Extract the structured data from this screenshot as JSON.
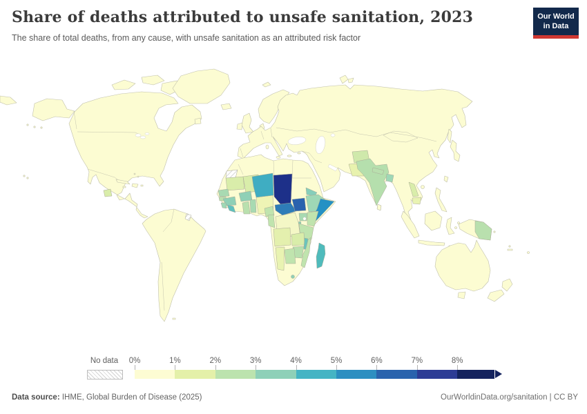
{
  "header": {
    "title": "Share of deaths attributed to unsafe sanitation, 2023",
    "subtitle": "The share of total deaths, from any cause, with unsafe sanitation as an attributed risk factor",
    "logo_line1": "Our World",
    "logo_line2": "in Data",
    "logo_bg": "#12294b",
    "logo_accent": "#cf3832"
  },
  "legend": {
    "no_data_label": "No data",
    "tick_labels": [
      "0%",
      "1%",
      "2%",
      "3%",
      "4%",
      "5%",
      "6%",
      "7%",
      "8%"
    ]
  },
  "footer": {
    "source_label": "Data source:",
    "source_text": " IHME, Global Burden of Disease (2025)",
    "right_text": "OurWorldinData.org/sanitation | CC BY"
  },
  "chart_data": {
    "type": "choropleth",
    "title": "Share of deaths attributed to unsafe sanitation, 2023",
    "unit": "% of total deaths",
    "legend_position": "bottom",
    "scale": {
      "tick_labels": [
        "0%",
        "1%",
        "2%",
        "3%",
        "4%",
        "5%",
        "6%",
        "7%",
        "8%"
      ],
      "colors": [
        "#fdfcd3",
        "#e4f0a9",
        "#bce3ae",
        "#8ed0b8",
        "#45b4c4",
        "#2d8fc1",
        "#2a63ad",
        "#2d3c95",
        "#14235e"
      ],
      "open_ended_max": true
    },
    "base_color": "#fcfcd2",
    "ocean_color": "#ffffff",
    "default_bucket": "0–1%",
    "no_data_countries": [
      "Western Sahara",
      "French Guiana"
    ],
    "countries": [
      {
        "id": "chad",
        "name": "Chad",
        "bucket": "7–8%",
        "color": "#1d3089"
      },
      {
        "id": "south-sudan",
        "name": "South Sudan",
        "bucket": "6–7%",
        "color": "#2a62ae"
      },
      {
        "id": "car",
        "name": "Central African Republic",
        "bucket": "5–6%",
        "color": "#2e7cb8"
      },
      {
        "id": "somalia",
        "name": "Somalia",
        "bucket": "5–6%",
        "color": "#2591c4"
      },
      {
        "id": "niger",
        "name": "Niger",
        "bucket": "4–5%",
        "color": "#3fadc2"
      },
      {
        "id": "madagascar",
        "name": "Madagascar",
        "bucket": "3–4%",
        "color": "#4fbbbc"
      },
      {
        "id": "liberia",
        "name": "Liberia",
        "bucket": "3–4%",
        "color": "#5fc0be"
      },
      {
        "id": "malawi",
        "name": "Malawi",
        "bucket": "3–4%",
        "color": "#6ac4bc"
      },
      {
        "id": "eritrea",
        "name": "Eritrea",
        "bucket": "2–3%",
        "color": "#86ceba"
      },
      {
        "id": "burkina-faso",
        "name": "Burkina Faso",
        "bucket": "2–3%",
        "color": "#8fd0b6"
      },
      {
        "id": "guinea",
        "name": "Guinea",
        "bucket": "2–3%",
        "color": "#8fd0b6"
      },
      {
        "id": "lesotho",
        "name": "Lesotho",
        "bucket": "2–3%",
        "color": "#8fd0b6"
      },
      {
        "id": "rwanda-burundi",
        "name": "Rwanda and Burundi",
        "bucket": "2–3%",
        "color": "#8fd0b6"
      },
      {
        "id": "ethiopia",
        "name": "Ethiopia",
        "bucket": "2–3%",
        "color": "#9ed8b6"
      },
      {
        "id": "sierra-leone",
        "name": "Sierra Leone",
        "bucket": "2–3%",
        "color": "#9ed8b6"
      },
      {
        "id": "bangladesh",
        "name": "Bangladesh",
        "bucket": "2–3%",
        "color": "#9ed8b6"
      },
      {
        "id": "senegal",
        "name": "Senegal",
        "bucket": "2–3%",
        "color": "#a8dab2"
      },
      {
        "id": "togo-benin",
        "name": "Togo and Benin",
        "bucket": "2–3%",
        "color": "#a8dab2"
      },
      {
        "id": "uganda",
        "name": "Uganda",
        "bucket": "2–3%",
        "color": "#a8dab2"
      },
      {
        "id": "ghana",
        "name": "Ghana",
        "bucket": "1–2%",
        "color": "#b9e0ae"
      },
      {
        "id": "guinea-bissau",
        "name": "Guinea-Bissau",
        "bucket": "1–2%",
        "color": "#b9e0ae"
      },
      {
        "id": "nepal",
        "name": "Nepal",
        "bucket": "1–2%",
        "color": "#b9e0ae"
      },
      {
        "id": "png",
        "name": "Papua New Guinea",
        "bucket": "1–2%",
        "color": "#b9e0ae"
      },
      {
        "id": "zimbabwe",
        "name": "Zimbabwe",
        "bucket": "1–2%",
        "color": "#b9e0ae"
      },
      {
        "id": "india",
        "name": "India",
        "bucket": "1–2%",
        "color": "#b5dfad"
      },
      {
        "id": "kenya",
        "name": "Kenya",
        "bucket": "1–2%",
        "color": "#c0e4ae"
      },
      {
        "id": "tanzania",
        "name": "Tanzania",
        "bucket": "1–2%",
        "color": "#c0e4ae"
      },
      {
        "id": "mozambique",
        "name": "Mozambique",
        "bucket": "1–2%",
        "color": "#c0e4ae"
      },
      {
        "id": "botswana",
        "name": "Botswana",
        "bucket": "1–2%",
        "color": "#c0e4ae"
      },
      {
        "id": "cameroon",
        "name": "Cameroon",
        "bucket": "1–2%",
        "color": "#c0e4ae"
      },
      {
        "id": "congo",
        "name": "Congo",
        "bucket": "1–2%",
        "color": "#c0e4ae"
      },
      {
        "id": "afghanistan",
        "name": "Afghanistan",
        "bucket": "1–2%",
        "color": "#cfe9ab"
      },
      {
        "id": "mali",
        "name": "Mali",
        "bucket": "1–2%",
        "color": "#d9edaa"
      },
      {
        "id": "mauritania",
        "name": "Mauritania",
        "bucket": "1–2%",
        "color": "#d9edaa"
      },
      {
        "id": "zambia",
        "name": "Zambia",
        "bucket": "1–2%",
        "color": "#d9edaa"
      },
      {
        "id": "laos",
        "name": "Laos",
        "bucket": "1–2%",
        "color": "#d9edaa"
      },
      {
        "id": "guatemala",
        "name": "Guatemala",
        "bucket": "1–2%",
        "color": "#d9edaa"
      },
      {
        "id": "angola",
        "name": "Angola",
        "bucket": "0–1%",
        "color": "#e4f0ae"
      },
      {
        "id": "namibia",
        "name": "Namibia",
        "bucket": "0–1%",
        "color": "#e9f3b2"
      },
      {
        "id": "pakistan",
        "name": "Pakistan",
        "bucket": "0–1%",
        "color": "#e8f2ae"
      },
      {
        "id": "cambodia",
        "name": "Cambodia",
        "bucket": "0–1%",
        "color": "#e9f3b2"
      },
      {
        "id": "nigeria",
        "name": "Nigeria",
        "bucket": "0–1%",
        "color": "#eef4b5"
      },
      {
        "id": "drc",
        "name": "Democratic Republic of Congo",
        "bucket": "0–1%",
        "color": "#f4f7c6"
      }
    ]
  }
}
